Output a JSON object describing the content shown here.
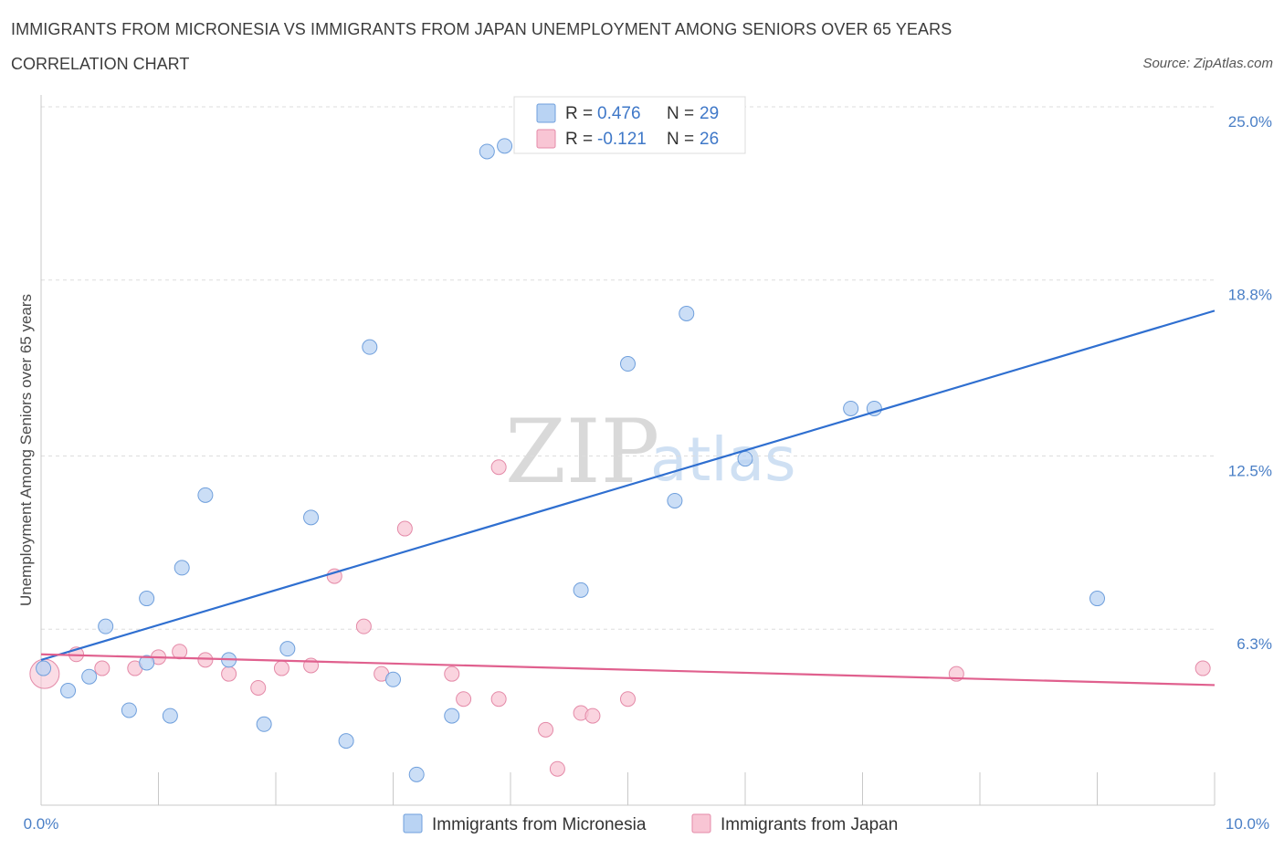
{
  "header": {
    "title": "IMMIGRANTS FROM MICRONESIA VS IMMIGRANTS FROM JAPAN UNEMPLOYMENT AMONG SENIORS OVER 65 YEARS",
    "subtitle": "CORRELATION CHART",
    "source": "Source: ZipAtlas.com"
  },
  "watermark": {
    "zip": "ZIP",
    "atlas": "atlas"
  },
  "colors": {
    "micronesia_fill": "#b9d3f3",
    "micronesia_stroke": "#6f9fdc",
    "micronesia_line": "#2f6fd0",
    "japan_fill": "#f8c5d4",
    "japan_stroke": "#e48aa8",
    "japan_line": "#e0608e",
    "tick_label": "#4a7fc6",
    "grid": "#dddddd"
  },
  "chart_data": {
    "type": "scatter",
    "title": "IMMIGRANTS FROM MICRONESIA VS IMMIGRANTS FROM JAPAN UNEMPLOYMENT AMONG SENIORS OVER 65 YEARS",
    "xlabel": "",
    "ylabel": "Unemployment Among Seniors over 65 years",
    "xlim": [
      0,
      10
    ],
    "ylim": [
      0,
      25
    ],
    "x_tick_labels": [
      "0.0%",
      "10.0%"
    ],
    "y_ticks": [
      6.3,
      12.5,
      18.8,
      25.0
    ],
    "y_tick_labels": [
      "6.3%",
      "12.5%",
      "18.8%",
      "25.0%"
    ],
    "grid": true,
    "legend": {
      "placement": "top-center",
      "entries": [
        {
          "r_label": "R =",
          "r_value": "0.476",
          "n_label": "N =",
          "n_value": "29"
        },
        {
          "r_label": "R =",
          "r_value": "-0.121",
          "n_label": "N =",
          "n_value": "26"
        }
      ]
    },
    "series": [
      {
        "name": "Immigrants from Micronesia",
        "trend": {
          "x0": 0.0,
          "y0": 5.2,
          "x1": 10.0,
          "y1": 17.7
        },
        "points": [
          [
            0.02,
            4.9
          ],
          [
            0.23,
            4.1
          ],
          [
            0.41,
            4.6
          ],
          [
            0.55,
            6.4
          ],
          [
            0.75,
            3.4
          ],
          [
            0.9,
            7.4
          ],
          [
            0.9,
            5.1
          ],
          [
            1.1,
            3.2
          ],
          [
            1.2,
            8.5
          ],
          [
            1.4,
            11.1
          ],
          [
            1.6,
            5.2
          ],
          [
            1.9,
            2.9
          ],
          [
            2.1,
            5.6
          ],
          [
            2.3,
            10.3
          ],
          [
            2.6,
            2.3
          ],
          [
            2.8,
            16.4
          ],
          [
            3.0,
            4.5
          ],
          [
            3.2,
            1.1
          ],
          [
            3.5,
            3.2
          ],
          [
            3.8,
            23.4
          ],
          [
            3.95,
            23.6
          ],
          [
            4.6,
            7.7
          ],
          [
            5.0,
            15.8
          ],
          [
            5.4,
            10.9
          ],
          [
            5.5,
            17.6
          ],
          [
            6.0,
            12.4
          ],
          [
            6.9,
            14.2
          ],
          [
            7.1,
            14.2
          ],
          [
            9.0,
            7.4
          ]
        ]
      },
      {
        "name": "Immigrants from Japan",
        "trend": {
          "x0": 0.0,
          "y0": 5.4,
          "x1": 10.0,
          "y1": 4.3
        },
        "points": [
          [
            0.03,
            4.7
          ],
          [
            0.3,
            5.4
          ],
          [
            0.52,
            4.9
          ],
          [
            0.8,
            4.9
          ],
          [
            1.0,
            5.3
          ],
          [
            1.18,
            5.5
          ],
          [
            1.4,
            5.2
          ],
          [
            1.6,
            4.7
          ],
          [
            1.85,
            4.2
          ],
          [
            2.05,
            4.9
          ],
          [
            2.3,
            5.0
          ],
          [
            2.5,
            8.2
          ],
          [
            2.75,
            6.4
          ],
          [
            2.9,
            4.7
          ],
          [
            3.1,
            9.9
          ],
          [
            3.5,
            4.7
          ],
          [
            3.6,
            3.8
          ],
          [
            3.9,
            12.1
          ],
          [
            3.9,
            3.8
          ],
          [
            4.3,
            2.7
          ],
          [
            4.4,
            1.3
          ],
          [
            4.6,
            3.3
          ],
          [
            4.7,
            3.2
          ],
          [
            5.0,
            3.8
          ],
          [
            7.8,
            4.7
          ],
          [
            9.9,
            4.9
          ]
        ]
      }
    ]
  }
}
